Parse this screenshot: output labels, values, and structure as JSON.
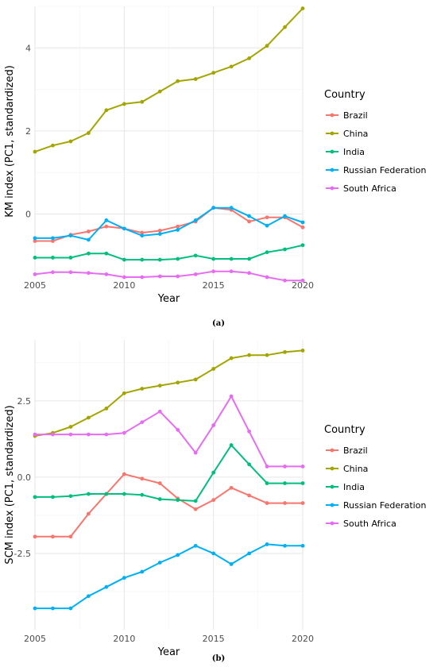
{
  "chart_data": [
    {
      "type": "line",
      "panel_label": "(a)",
      "xlabel": "Year",
      "ylabel": "KM index (PC1, standardized)",
      "xlim": [
        2005,
        2020
      ],
      "ylim": [
        -1.5,
        5.0
      ],
      "x_ticks": [
        2005,
        2010,
        2015,
        2020
      ],
      "y_ticks": [
        0,
        2,
        4
      ],
      "x": [
        2005,
        2006,
        2007,
        2008,
        2009,
        2010,
        2011,
        2012,
        2013,
        2014,
        2015,
        2016,
        2017,
        2018,
        2019,
        2020
      ],
      "legend_title": "Country",
      "legend_position": "right",
      "grid": true,
      "series": [
        {
          "name": "Brazil",
          "color": "#F8766D",
          "values": [
            -0.65,
            -0.65,
            -0.5,
            -0.42,
            -0.3,
            -0.35,
            -0.45,
            -0.4,
            -0.3,
            -0.18,
            0.15,
            0.1,
            -0.18,
            -0.08,
            -0.08,
            -0.32
          ]
        },
        {
          "name": "China",
          "color": "#A3A500",
          "values": [
            1.5,
            1.65,
            1.75,
            1.95,
            2.5,
            2.65,
            2.7,
            2.95,
            3.2,
            3.25,
            3.4,
            3.55,
            3.75,
            4.05,
            4.5,
            4.95
          ]
        },
        {
          "name": "India",
          "color": "#00BF7D",
          "values": [
            -1.05,
            -1.05,
            -1.05,
            -0.95,
            -0.95,
            -1.1,
            -1.1,
            -1.1,
            -1.08,
            -1.0,
            -1.08,
            -1.08,
            -1.08,
            -0.92,
            -0.85,
            -0.75
          ]
        },
        {
          "name": "Russian Federation",
          "color": "#00B0F6",
          "values": [
            -0.58,
            -0.58,
            -0.52,
            -0.62,
            -0.15,
            -0.35,
            -0.52,
            -0.48,
            -0.38,
            -0.15,
            0.15,
            0.15,
            -0.05,
            -0.28,
            -0.05,
            -0.2
          ]
        },
        {
          "name": "South Africa",
          "color": "#E76BF3",
          "values": [
            -1.45,
            -1.4,
            -1.4,
            -1.42,
            -1.45,
            -1.52,
            -1.52,
            -1.5,
            -1.5,
            -1.45,
            -1.38,
            -1.38,
            -1.42,
            -1.52,
            -1.6,
            -1.6
          ]
        }
      ]
    },
    {
      "type": "line",
      "panel_label": "(b)",
      "xlabel": "Year",
      "ylabel": "SCM index (PC1, standardized)",
      "xlim": [
        2005,
        2020
      ],
      "ylim": [
        -5.0,
        4.5
      ],
      "x_ticks": [
        2005,
        2010,
        2015,
        2020
      ],
      "y_ticks": [
        -2.5,
        0.0,
        2.5
      ],
      "y_tick_labels": [
        "-2.5",
        "0.0",
        "2.5"
      ],
      "x": [
        2005,
        2006,
        2007,
        2008,
        2009,
        2010,
        2011,
        2012,
        2013,
        2014,
        2015,
        2016,
        2017,
        2018,
        2019,
        2020
      ],
      "legend_title": "Country",
      "legend_position": "right",
      "grid": true,
      "series": [
        {
          "name": "Brazil",
          "color": "#F8766D",
          "values": [
            -1.95,
            -1.95,
            -1.95,
            -1.2,
            -0.55,
            0.1,
            -0.05,
            -0.2,
            -0.7,
            -1.05,
            -0.75,
            -0.35,
            -0.6,
            -0.85,
            -0.85,
            -0.85
          ]
        },
        {
          "name": "China",
          "color": "#A3A500",
          "values": [
            1.35,
            1.45,
            1.65,
            1.95,
            2.25,
            2.75,
            2.9,
            3.0,
            3.1,
            3.2,
            3.55,
            3.9,
            4.0,
            4.0,
            4.1,
            4.15
          ]
        },
        {
          "name": "India",
          "color": "#00BF7D",
          "values": [
            -0.65,
            -0.65,
            -0.62,
            -0.55,
            -0.55,
            -0.55,
            -0.58,
            -0.72,
            -0.75,
            -0.78,
            0.15,
            1.05,
            0.42,
            -0.2,
            -0.2,
            -0.2
          ]
        },
        {
          "name": "Russian Federation",
          "color": "#00B0F6",
          "values": [
            -4.3,
            -4.3,
            -4.3,
            -3.9,
            -3.6,
            -3.3,
            -3.1,
            -2.8,
            -2.55,
            -2.25,
            -2.5,
            -2.85,
            -2.5,
            -2.2,
            -2.25,
            -2.25
          ]
        },
        {
          "name": "South Africa",
          "color": "#E76BF3",
          "values": [
            1.4,
            1.4,
            1.4,
            1.4,
            1.4,
            1.45,
            1.8,
            2.15,
            1.55,
            0.8,
            1.7,
            2.65,
            1.5,
            0.35,
            0.35,
            0.35
          ]
        }
      ]
    }
  ]
}
